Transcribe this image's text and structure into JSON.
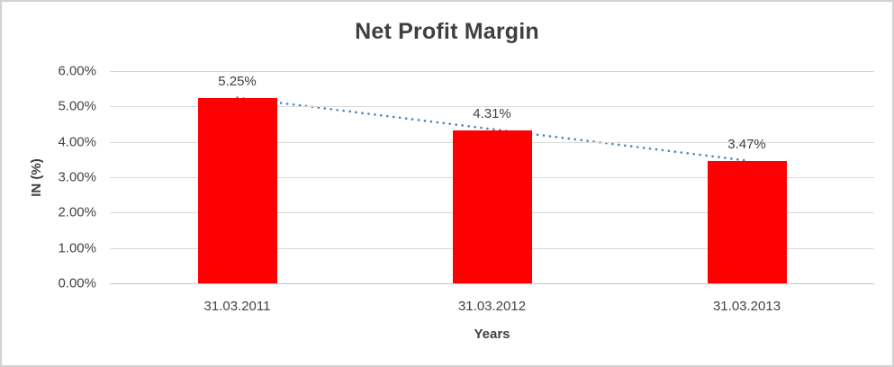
{
  "chart_data": {
    "type": "bar",
    "title": "Net Profit Margin",
    "xlabel": "Years",
    "ylabel": "IN (%)",
    "categories": [
      "31.03.2011",
      "31.03.2012",
      "31.03.2013"
    ],
    "series": [
      {
        "name": "Net Profit Margin",
        "values": [
          5.25,
          4.31,
          3.47
        ]
      }
    ],
    "data_labels": [
      "5.25%",
      "4.31%",
      "3.47%"
    ],
    "ylim": [
      0,
      6
    ],
    "ytick_step": 1,
    "ytick_labels": [
      "0.00%",
      "1.00%",
      "2.00%",
      "3.00%",
      "4.00%",
      "5.00%",
      "6.00%"
    ],
    "grid": true,
    "legend": "none",
    "trendline": {
      "type": "linear",
      "style": "dotted",
      "from_value": 5.25,
      "to_value": 3.47
    },
    "colors": {
      "bar": "#ff0000",
      "trendline": "#4e81bd",
      "gridline": "#d9d9d9",
      "text": "#404040"
    }
  }
}
